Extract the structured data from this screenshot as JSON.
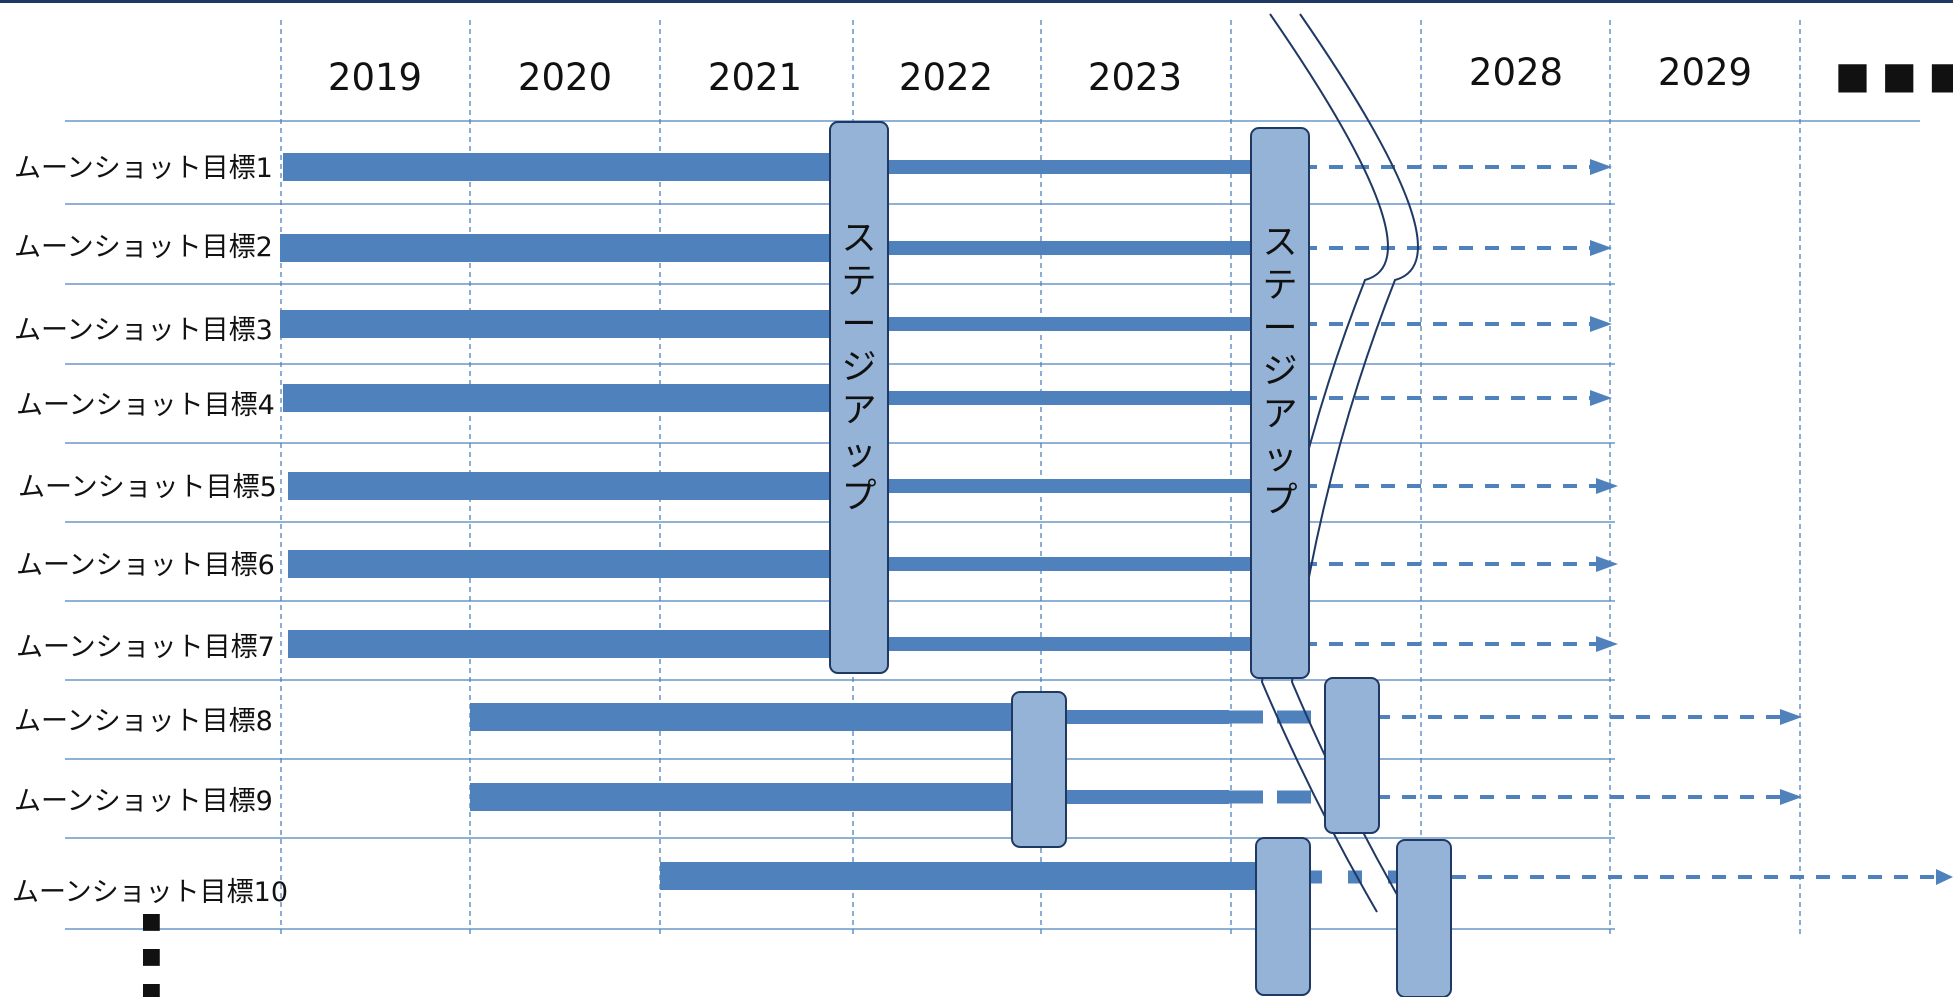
{
  "years": [
    "2019",
    "2020",
    "2021",
    "2022",
    "2023",
    "2028",
    "2029"
  ],
  "continuation_mark": "■ ■ ■",
  "row_continuation_mark": "■",
  "rows": [
    {
      "label": "ムーンショット目標1"
    },
    {
      "label": "ムーンショット目標2"
    },
    {
      "label": "ムーンショット目標3"
    },
    {
      "label": "ムーンショット目標4"
    },
    {
      "label": "ムーンショット目標5"
    },
    {
      "label": "ムーンショット目標6"
    },
    {
      "label": "ムーンショット目標7"
    },
    {
      "label": "ムーンショット目標8"
    },
    {
      "label": "ムーンショット目標9"
    },
    {
      "label": "ムーンショット目標10"
    }
  ],
  "stage_up_label": "ステージアップ",
  "colors": {
    "bar": "#4f81bd",
    "stage_box_fill": "#95b3d7",
    "stage_box_stroke": "#1f3864",
    "grid_line": "#4f81bd",
    "top_rule": "#1f3864",
    "break_line": "#1f3864"
  }
}
